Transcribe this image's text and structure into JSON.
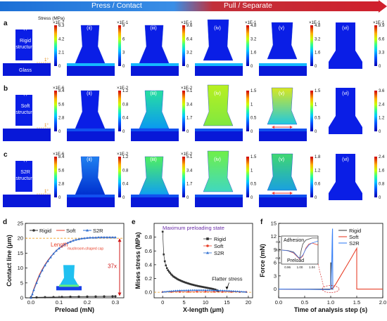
{
  "banner": {
    "left_label": "Press / Contact",
    "right_label": "Pull / Separate",
    "left_color": "#1c6fd6",
    "right_color": "#d0202c"
  },
  "sim_panels": {
    "frame_labels": [
      "(i)",
      "(ii)",
      "(iii)",
      "(iv)",
      "(v)",
      "(vi)"
    ],
    "stress_title": "Stress (MPa)",
    "rows": [
      {
        "letter": "a",
        "structure_label_lines": [
          "Rigid",
          "structure"
        ],
        "substrate_label": "Glass",
        "angle_label": "1°",
        "colorbars": [
          {
            "exponent": "×1E-7",
            "ticks": [
              "6.3",
              "4.2",
              "2.1",
              "0"
            ]
          },
          {
            "exponent": "×1E-1",
            "ticks": [
              "9",
              "6",
              "3",
              "0"
            ]
          },
          {
            "exponent": "×1E-1",
            "ticks": [
              "9.6",
              "6.4",
              "3.2",
              "0"
            ]
          },
          {
            "exponent": "×1E-1",
            "ticks": [
              "4.8",
              "3.2",
              "1.6",
              "0"
            ]
          },
          {
            "exponent": "×1E-1",
            "ticks": [
              "4.8",
              "3.2",
              "1.6",
              "0"
            ]
          },
          {
            "exponent": "×1E-1",
            "ticks": [
              "9.9",
              "6.6",
              "3.3",
              "0"
            ]
          }
        ]
      },
      {
        "letter": "b",
        "structure_label_lines": [
          "Soft",
          "structure"
        ],
        "substrate_label": "",
        "angle_label": "1°",
        "colorbars": [
          {
            "exponent": "×1E-6",
            "ticks": [
              "8.4",
              "5.6",
              "2.8",
              "0"
            ]
          },
          {
            "exponent": "×1E-2",
            "ticks": [
              "1.2",
              "0.8",
              "0.4",
              "0"
            ]
          },
          {
            "exponent": "×1E-2",
            "ticks": [
              "5.1",
              "3.4",
              "1.7",
              "0"
            ]
          },
          {
            "exponent": "",
            "ticks": [
              "1.5",
              "1",
              "0.5",
              "0"
            ]
          },
          {
            "exponent": "",
            "ticks": [
              "1.5",
              "1",
              "0.5",
              "0"
            ]
          },
          {
            "exponent": "",
            "ticks": [
              "3.6",
              "2.4",
              "1.2",
              "0"
            ]
          }
        ]
      },
      {
        "letter": "c",
        "structure_label_lines": [
          "S2R",
          "structure"
        ],
        "substrate_label": "",
        "angle_label": "1°",
        "colorbars": [
          {
            "exponent": "×1E-6",
            "ticks": [
              "8.4",
              "5.6",
              "2.8",
              "0"
            ]
          },
          {
            "exponent": "×1E-2",
            "ticks": [
              "1.2",
              "0.8",
              "0.4",
              "0"
            ]
          },
          {
            "exponent": "×1E-2",
            "ticks": [
              "5.1",
              "3.4",
              "1.7",
              "0"
            ]
          },
          {
            "exponent": "",
            "ticks": [
              "1.5",
              "1",
              "0.5",
              "0"
            ]
          },
          {
            "exponent": "",
            "ticks": [
              "1.8",
              "1.2",
              "0.6",
              "0"
            ]
          },
          {
            "exponent": "",
            "ticks": [
              "2.4",
              "1.6",
              "0.8",
              "0"
            ]
          }
        ]
      }
    ]
  },
  "chart_data": [
    {
      "panel": "d",
      "type": "line",
      "xlabel": "Preload (mN)",
      "ylabel": "Contact line (μm)",
      "xlim": [
        -0.02,
        0.33
      ],
      "ylim": [
        0,
        25
      ],
      "xticks": [
        "0.0",
        "0.1",
        "0.2",
        "0.3"
      ],
      "yticks": [
        "0",
        "5",
        "10",
        "15",
        "20",
        "25"
      ],
      "annotation_main": "Length",
      "annotation_sub": "mushroom-shaped cap",
      "ratio_label": "37x",
      "reference_line_y": 20,
      "series": [
        {
          "name": "Rigid",
          "color": "#333333",
          "marker": "circle",
          "x": [
            0.0,
            0.02,
            0.05,
            0.08,
            0.11,
            0.14,
            0.17,
            0.2,
            0.23,
            0.26,
            0.29,
            0.3
          ],
          "y": [
            0.1,
            0.15,
            0.2,
            0.25,
            0.3,
            0.35,
            0.38,
            0.42,
            0.45,
            0.48,
            0.5,
            0.52
          ]
        },
        {
          "name": "Soft",
          "color": "#e8412a",
          "marker": "none",
          "x": [
            0.0,
            0.005,
            0.01,
            0.02,
            0.03,
            0.04,
            0.05,
            0.06,
            0.07,
            0.08,
            0.09,
            0.1,
            0.12,
            0.14,
            0.16,
            0.18,
            0.2,
            0.22,
            0.25,
            0.28,
            0.3
          ],
          "y": [
            0.0,
            1.5,
            3.0,
            5.5,
            7.8,
            9.6,
            11.2,
            12.6,
            13.8,
            14.9,
            15.9,
            16.7,
            18.0,
            18.9,
            19.5,
            19.9,
            20.1,
            20.2,
            20.3,
            20.3,
            20.3
          ]
        },
        {
          "name": "S2R",
          "color": "#2f6fd1",
          "marker": "triangle",
          "x": [
            0.0,
            0.005,
            0.01,
            0.02,
            0.03,
            0.04,
            0.05,
            0.06,
            0.07,
            0.08,
            0.09,
            0.1,
            0.11,
            0.12,
            0.13,
            0.14,
            0.15,
            0.16,
            0.17,
            0.18,
            0.19,
            0.2,
            0.21,
            0.22,
            0.23,
            0.24,
            0.25,
            0.26,
            0.27,
            0.28,
            0.29,
            0.3
          ],
          "y": [
            0.0,
            1.2,
            2.6,
            5.0,
            7.3,
            9.2,
            10.9,
            12.3,
            13.6,
            14.8,
            15.8,
            16.6,
            17.3,
            17.9,
            18.4,
            18.8,
            19.2,
            19.5,
            19.7,
            19.9,
            20.0,
            20.1,
            20.2,
            20.2,
            20.2,
            20.3,
            20.3,
            20.3,
            20.3,
            20.3,
            20.3,
            20.3
          ]
        }
      ]
    },
    {
      "panel": "e",
      "type": "scatter",
      "title": "Maximum preloading state",
      "title_color": "#6a2ca8",
      "xlabel": "X-length (μm)",
      "ylabel": "Mises stress (MPa)",
      "xlim": [
        -2,
        21
      ],
      "ylim": [
        -0.08,
        1.0
      ],
      "xticks": [
        "0",
        "5",
        "10",
        "15",
        "20"
      ],
      "yticks": [
        "0.0",
        "0.2",
        "0.4",
        "0.6",
        "0.8"
      ],
      "annotation": "Flatter stress",
      "series": [
        {
          "name": "Rigid",
          "color": "#333333",
          "marker": "square",
          "x": [
            0,
            0.25,
            0.5,
            0.75,
            1.0,
            1.25,
            1.5,
            1.75,
            2.0,
            2.25,
            2.5,
            2.75,
            3.0,
            3.25,
            3.5,
            3.75,
            4.0,
            4.25,
            4.5,
            4.75,
            5.0,
            5.25,
            5.5,
            5.75,
            6.0,
            6.25,
            6.5,
            6.75,
            7.0,
            7.25,
            7.5,
            7.75,
            8.0,
            8.25,
            8.5,
            8.75,
            9.0,
            9.25,
            9.5,
            9.75,
            10.0,
            10.25,
            10.5,
            10.75,
            11.0,
            11.25,
            11.5,
            11.75,
            12.0,
            12.25,
            12.5,
            12.75,
            13.0
          ],
          "y": [
            0.88,
            0.55,
            0.45,
            0.39,
            0.35,
            0.32,
            0.3,
            0.28,
            0.26,
            0.245,
            0.23,
            0.22,
            0.21,
            0.2,
            0.19,
            0.182,
            0.175,
            0.168,
            0.161,
            0.155,
            0.149,
            0.143,
            0.138,
            0.133,
            0.128,
            0.123,
            0.118,
            0.114,
            0.11,
            0.106,
            0.102,
            0.098,
            0.095,
            0.091,
            0.088,
            0.085,
            0.082,
            0.079,
            0.076,
            0.073,
            0.07,
            0.067,
            0.064,
            0.061,
            0.058,
            0.055,
            0.052,
            0.048,
            0.044,
            0.04,
            0.034,
            0.026,
            0.015
          ]
        },
        {
          "name": "Soft",
          "color": "#e8412a",
          "marker": "circle",
          "x": [
            0,
            2,
            4,
            6,
            8,
            10,
            12,
            14,
            16,
            18,
            19.5
          ],
          "y": [
            0.005,
            0.006,
            0.007,
            0.008,
            0.009,
            0.009,
            0.008,
            0.007,
            0.006,
            0.005,
            0.005
          ]
        },
        {
          "name": "S2R",
          "color": "#2f6fd1",
          "marker": "triangle",
          "x": [
            0,
            0.5,
            1,
            1.5,
            2,
            2.5,
            3,
            3.5,
            4,
            4.5,
            5,
            5.5,
            6,
            6.5,
            7,
            7.5,
            8,
            8.5,
            9,
            9.5,
            10,
            10.5,
            11,
            11.5,
            12,
            12.5,
            13,
            13.5,
            14,
            14.5,
            15,
            15.5,
            16,
            16.5,
            17,
            17.5,
            18,
            18.5,
            19,
            19.5
          ],
          "y": [
            0.005,
            0.008,
            0.011,
            0.014,
            0.017,
            0.02,
            0.022,
            0.024,
            0.026,
            0.027,
            0.028,
            0.029,
            0.03,
            0.03,
            0.031,
            0.031,
            0.031,
            0.031,
            0.031,
            0.031,
            0.031,
            0.03,
            0.03,
            0.029,
            0.029,
            0.028,
            0.027,
            0.026,
            0.025,
            0.024,
            0.022,
            0.021,
            0.019,
            0.017,
            0.015,
            0.013,
            0.011,
            0.009,
            0.007,
            0.005
          ]
        }
      ]
    },
    {
      "panel": "f",
      "type": "line",
      "xlabel": "Time of analysis step (s)",
      "ylabel": "Force (mN)",
      "xlim": [
        0,
        2.0
      ],
      "ylim": [
        -2,
        15
      ],
      "xticks": [
        "0.0",
        "0.5",
        "1.0",
        "1.5",
        "2.0"
      ],
      "yticks": [
        "0",
        "3",
        "6",
        "9",
        "12",
        "15"
      ],
      "inset_label_top": "Adhesion",
      "inset_label_bottom": "Preload",
      "inset_xticks": [
        "0.96",
        "1.00",
        "1.04"
      ],
      "inset_yticks": [
        "0.4",
        "0.0",
        "-0.4"
      ],
      "series": [
        {
          "name": "Rigid",
          "color": "#444444",
          "x": [
            0.0,
            0.98,
            1.0,
            1.0,
            1.005,
            1.01,
            1.05
          ],
          "y": [
            0.0,
            0.0,
            0.0,
            6.0,
            6.0,
            0.0,
            0.0
          ]
        },
        {
          "name": "Soft",
          "color": "#e8412a",
          "x": [
            0.0,
            0.98,
            1.0,
            1.05,
            1.1,
            1.2,
            1.3,
            1.4,
            1.5,
            1.5,
            2.0
          ],
          "y": [
            0.0,
            -0.1,
            0.0,
            0.3,
            1.2,
            3.2,
            5.2,
            7.2,
            9.3,
            0.0,
            0.0
          ]
        },
        {
          "name": "S2R",
          "color": "#3b82f6",
          "x": [
            0.0,
            0.98,
            1.0,
            1.02,
            1.03,
            1.035,
            1.04,
            1.05
          ],
          "y": [
            0.0,
            -0.1,
            0.0,
            6.0,
            12.0,
            13.8,
            0.0,
            0.0
          ]
        }
      ],
      "inset_series": [
        {
          "name": "Rigid",
          "color": "#444444",
          "x": [
            0.94,
            0.96,
            0.98,
            0.995,
            1.0,
            1.005,
            1.01,
            1.02,
            1.04,
            1.06
          ],
          "y": [
            0.0,
            -0.02,
            -0.1,
            -0.35,
            -0.4,
            0.0,
            0.3,
            0.5,
            0.6,
            0.6
          ]
        },
        {
          "name": "Soft",
          "color": "#e8412a",
          "x": [
            0.94,
            0.96,
            0.98,
            0.995,
            1.0,
            1.01,
            1.02,
            1.03,
            1.04,
            1.05,
            1.06
          ],
          "y": [
            0.0,
            -0.03,
            -0.15,
            -0.38,
            -0.45,
            -0.3,
            0.1,
            0.3,
            0.35,
            0.3,
            0.25
          ]
        },
        {
          "name": "S2R",
          "color": "#3b82f6",
          "x": [
            0.94,
            0.96,
            0.98,
            0.995,
            1.0,
            1.01,
            1.02,
            1.03,
            1.04,
            1.05,
            1.06
          ],
          "y": [
            0.0,
            -0.03,
            -0.12,
            -0.35,
            -0.42,
            -0.25,
            0.05,
            0.25,
            0.35,
            0.4,
            0.45
          ]
        }
      ]
    }
  ]
}
